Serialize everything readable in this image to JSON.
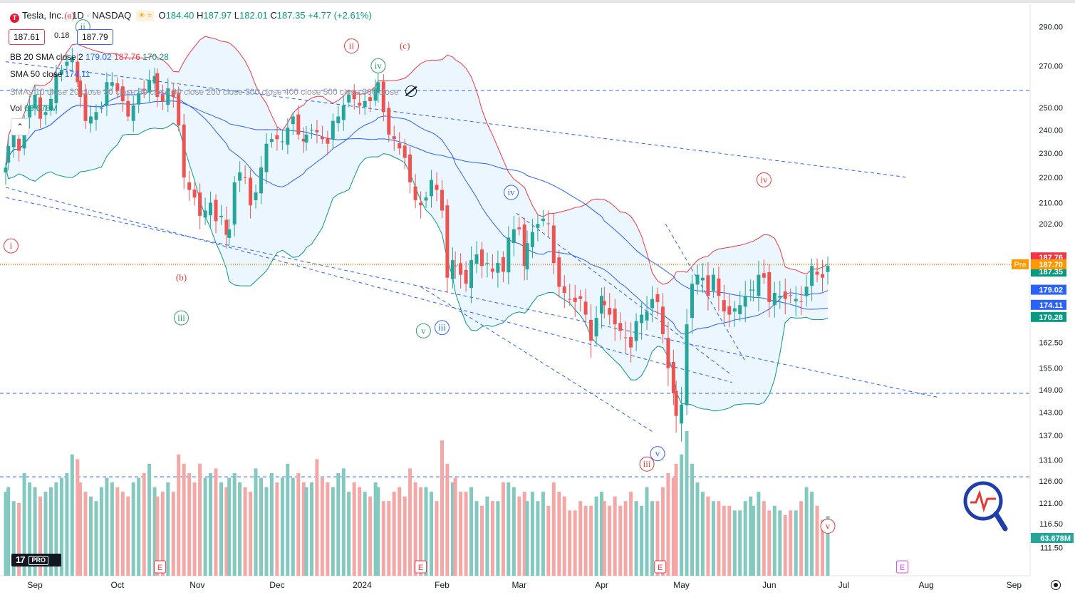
{
  "window": {
    "symbol_name": "Tesla, Inc.",
    "interval": "1D",
    "exchange": "NASDAQ",
    "separator": "·",
    "ohlc": {
      "o_label": "O",
      "o": "184.40",
      "h_label": "H",
      "h": "187.97",
      "l_label": "L",
      "l": "182.01",
      "c_label": "C",
      "c": "187.35",
      "change": "+4.77 (+2.61%)"
    },
    "sell_price": "187.61",
    "spread": "0.18",
    "buy_price": "187.79",
    "indicators": {
      "bb": {
        "label": "BB 20 SMA close 2",
        "basis": "179.02",
        "upper": "187.76",
        "lower": "170.28"
      },
      "sma50": {
        "label": "SMA 50 close",
        "value": "174.11"
      },
      "smas": {
        "label": "SMAs 10 close 20 close 30 close 50 close 90 close 200 close 300 close 400 close 500 close 600 close"
      },
      "vol": {
        "label": "Vol",
        "value": "63.678M"
      }
    },
    "logo_text": "17",
    "logo_badge": "PRO"
  },
  "colors": {
    "up": "#26a69a",
    "down": "#ef5350",
    "up_vol": "#84c9c0",
    "down_vol": "#f4a7a5",
    "bb_upper": "#f23645",
    "bb_lower": "#089981",
    "bb_basis": "#2962ff",
    "sma50": "#2962ff",
    "fill": "#e3f2fd",
    "trend": "#2962ff",
    "wave_red": "#e53935",
    "wave_green": "#2e9e6e",
    "wave_blue": "#2962ff",
    "pre": "#ff9800"
  },
  "chart_data": {
    "type": "candlestick",
    "y_axis_scale": "log",
    "ylim": [
      108,
      296
    ],
    "y_ticks": [
      290,
      270,
      250,
      240,
      230,
      220,
      210,
      202,
      162.5,
      155,
      149,
      143,
      137,
      131,
      126,
      121,
      116.5,
      111.5
    ],
    "y_tick_labels": [
      "290.00",
      "270.00",
      "250.00",
      "240.00",
      "230.00",
      "220.00",
      "210.00",
      "202.00",
      "162.50",
      "155.00",
      "149.00",
      "143.00",
      "137.00",
      "131.00",
      "126.00",
      "121.00",
      "116.50",
      "111.50"
    ],
    "x_labels": [
      {
        "label": "Sep",
        "date": "2023-09-01"
      },
      {
        "label": "Oct",
        "date": "2023-10-02"
      },
      {
        "label": "Nov",
        "date": "2023-11-01"
      },
      {
        "label": "Dec",
        "date": "2023-12-01"
      },
      {
        "label": "2024",
        "date": "2024-01-02"
      },
      {
        "label": "Feb",
        "date": "2024-02-01"
      },
      {
        "label": "Mar",
        "date": "2024-03-01"
      },
      {
        "label": "Apr",
        "date": "2024-04-01"
      },
      {
        "label": "May",
        "date": "2024-05-01"
      },
      {
        "label": "Jun",
        "date": "2024-06-03"
      },
      {
        "label": "Jul",
        "date": "2024-07-01"
      },
      {
        "label": "Aug",
        "date": "2024-08-01"
      },
      {
        "label": "Sep",
        "date": "2024-09-03"
      }
    ],
    "first_date": "2023-08-21",
    "last_date": "2024-06-25",
    "closes": [
      224,
      233,
      238,
      231,
      244,
      251,
      256,
      245,
      248,
      254,
      266,
      268,
      272,
      274,
      262,
      255,
      244,
      246,
      248,
      250,
      262,
      262,
      258,
      253,
      246,
      251,
      257,
      258,
      263,
      265,
      255,
      253,
      259,
      255,
      242,
      220,
      215,
      212,
      205,
      207,
      210,
      203,
      205,
      198,
      200,
      218,
      222,
      220,
      209,
      214,
      224,
      234,
      236,
      236,
      235,
      241,
      246,
      238,
      235,
      238,
      240,
      239,
      236,
      234,
      244,
      246,
      251,
      256,
      254,
      251,
      253,
      253,
      259,
      262,
      248,
      238,
      236,
      232,
      228,
      218,
      211,
      209,
      212,
      219,
      215,
      207,
      183,
      189,
      187,
      184,
      181,
      189,
      191,
      187,
      188,
      185,
      188,
      185,
      197,
      200,
      200,
      187,
      195,
      199,
      202,
      204,
      202,
      188,
      180,
      178,
      176,
      175,
      176,
      171,
      163,
      170,
      177,
      174,
      171,
      168,
      166,
      164,
      161,
      169,
      171,
      172,
      176,
      175,
      165,
      155,
      148,
      142,
      145,
      168,
      181,
      184,
      183,
      177,
      184,
      177,
      172,
      171,
      173,
      174,
      177,
      179,
      179,
      184,
      183,
      175,
      178,
      177,
      176,
      177,
      176,
      175,
      180,
      187,
      184,
      183,
      187
    ],
    "volume_millions": [
      90,
      95,
      80,
      78,
      110,
      100,
      95,
      85,
      90,
      95,
      100,
      105,
      110,
      130,
      125,
      100,
      90,
      85,
      80,
      95,
      105,
      100,
      95,
      90,
      85,
      100,
      105,
      110,
      120,
      95,
      85,
      90,
      100,
      90,
      130,
      120,
      110,
      100,
      120,
      105,
      110,
      115,
      100,
      95,
      105,
      110,
      100,
      95,
      90,
      115,
      105,
      95,
      110,
      100,
      105,
      120,
      105,
      110,
      100,
      95,
      100,
      125,
      105,
      100,
      95,
      110,
      115,
      90,
      100,
      95,
      90,
      85,
      100,
      95,
      80,
      80,
      90,
      95,
      85,
      115,
      100,
      95,
      95,
      90,
      80,
      145,
      120,
      100,
      105,
      90,
      90,
      95,
      80,
      75,
      85,
      80,
      80,
      100,
      100,
      95,
      85,
      90,
      80,
      90,
      80,
      90,
      75,
      100,
      90,
      85,
      70,
      70,
      80,
      75,
      75,
      85,
      90,
      80,
      75,
      85,
      75,
      80,
      90,
      80,
      75,
      95,
      80,
      80,
      95,
      110,
      105,
      120,
      130,
      155,
      120,
      100,
      90,
      85,
      80,
      80,
      75,
      75,
      70,
      70,
      80,
      85,
      75,
      90,
      80,
      70,
      75,
      70,
      65,
      70,
      70,
      80,
      95,
      90,
      75,
      60,
      64
    ],
    "annotations_ohlc": {
      "open": "184.40",
      "high": "187.97",
      "low": "182.01",
      "close": "187.35"
    },
    "bb": {
      "upper": "187.76",
      "basis": "179.02",
      "lower": "170.28"
    },
    "sma50_last": "174.11",
    "pre_label": "Pre",
    "pre_price": "187.70",
    "last_price": "187.35",
    "vol_last": "63.678M",
    "wave_labels": [
      {
        "text": "i",
        "date": "2023-08-23",
        "price": 194,
        "color": "red"
      },
      {
        "text": "(a)",
        "date": "2023-09-14",
        "price": 296,
        "color": "red"
      },
      {
        "text": "ii",
        "date": "2023-09-19",
        "price": 290,
        "color": "green"
      },
      {
        "text": "(b)",
        "date": "2023-10-26",
        "price": 183,
        "color": "red"
      },
      {
        "text": "iii",
        "date": "2023-10-26",
        "price": 170,
        "color": "green"
      },
      {
        "text": "ii",
        "date": "2023-12-29",
        "price": 280,
        "color": "red"
      },
      {
        "text": "(c)",
        "date": "2024-01-18",
        "price": 280,
        "color": "red"
      },
      {
        "text": "iv",
        "date": "2024-01-08",
        "price": 270,
        "color": "green"
      },
      {
        "text": "v",
        "date": "2024-01-25",
        "price": 166,
        "color": "green"
      },
      {
        "text": "iii",
        "date": "2024-02-01",
        "price": 167,
        "color": "blue"
      },
      {
        "text": "iv",
        "date": "2024-02-27",
        "price": 214,
        "color": "blue"
      },
      {
        "text": "iii",
        "date": "2024-04-18",
        "price": 130,
        "color": "red"
      },
      {
        "text": "v",
        "date": "2024-04-22",
        "price": 132.5,
        "color": "blue"
      },
      {
        "text": "iv",
        "date": "2024-06-01",
        "price": 219,
        "color": "red"
      },
      {
        "text": "v",
        "date": "2024-06-25",
        "price": 116,
        "color": "red"
      }
    ],
    "earnings_markers": [
      {
        "label": "E",
        "date": "2023-10-18"
      },
      {
        "label": "E",
        "date": "2024-01-24"
      },
      {
        "label": "E",
        "date": "2024-04-23"
      },
      {
        "label": "E",
        "date": "2024-07-23",
        "future": true
      }
    ]
  }
}
